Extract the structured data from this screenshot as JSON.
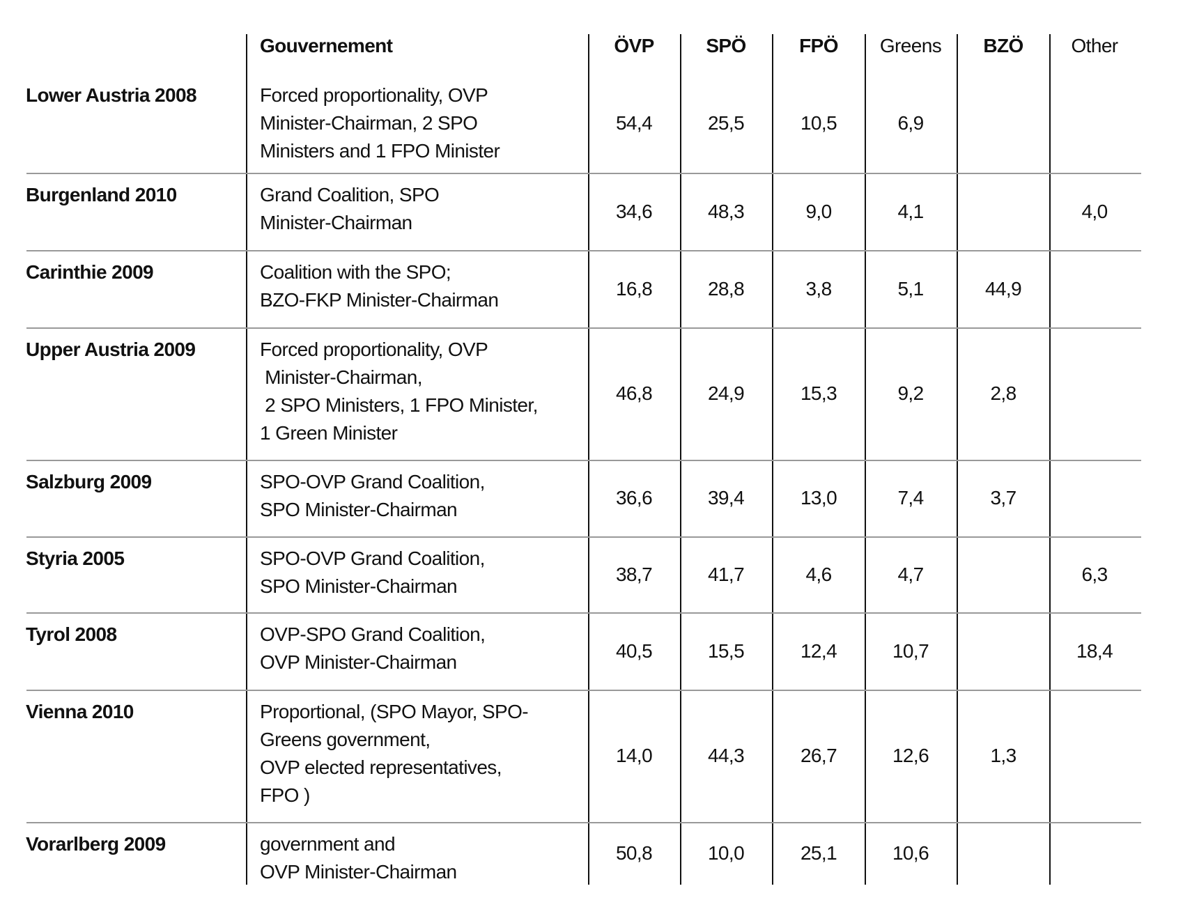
{
  "table": {
    "header": {
      "government": "Gouvernement",
      "parties": [
        "ÖVP",
        "SPÖ",
        "FPÖ",
        "Greens",
        "BZÖ",
        "Other"
      ]
    },
    "rows": [
      {
        "region": "Lower Austria 2008",
        "government": [
          "Forced proportionality, OVP",
          "Minister-Chairman, 2 SPO",
          "Ministers and 1 FPO Minister"
        ],
        "values": [
          "54,4",
          "25,5",
          "10,5",
          "6,9",
          null,
          null
        ]
      },
      {
        "region": "Burgenland 2010",
        "government": [
          "Grand Coalition, SPO",
          "Minister-Chairman"
        ],
        "values": [
          "34,6",
          "48,3",
          "9,0",
          "4,1",
          null,
          "4,0"
        ]
      },
      {
        "region": "Carinthie 2009",
        "government": [
          "Coalition with the SPO;",
          "BZO-FKP Minister-Chairman"
        ],
        "values": [
          "16,8",
          "28,8",
          "3,8",
          "5,1",
          "44,9",
          null
        ]
      },
      {
        "region": "Upper Austria 2009",
        "government": [
          "Forced proportionality, OVP",
          " Minister-Chairman,",
          " 2 SPO Ministers, 1 FPO Minister,",
          "1 Green Minister"
        ],
        "values": [
          "46,8",
          "24,9",
          "15,3",
          "9,2",
          "2,8",
          null
        ]
      },
      {
        "region": "Salzburg 2009",
        "government": [
          "SPO-OVP Grand Coalition,",
          "SPO Minister-Chairman"
        ],
        "values": [
          "36,6",
          "39,4",
          "13,0",
          "7,4",
          "3,7",
          null
        ]
      },
      {
        "region": "Styria 2005",
        "government": [
          "SPO-OVP Grand Coalition,",
          "SPO Minister-Chairman"
        ],
        "values": [
          "38,7",
          "41,7",
          "4,6",
          "4,7",
          null,
          "6,3"
        ]
      },
      {
        "region": "Tyrol 2008",
        "government": [
          "OVP-SPO Grand Coalition,",
          "OVP Minister-Chairman"
        ],
        "values": [
          "40,5",
          "15,5",
          "12,4",
          "10,7",
          null,
          "18,4"
        ]
      },
      {
        "region": "Vienna 2010",
        "government": [
          "Proportional, (SPO Mayor, SPO-",
          "Greens government,",
          "OVP elected representatives,",
          "FPO )"
        ],
        "values": [
          "14,0",
          "44,3",
          "26,7",
          "12,6",
          "1,3",
          null
        ]
      },
      {
        "region": "Vorarlberg 2009",
        "government": [
          "government and",
          "OVP Minister-Chairman"
        ],
        "values": [
          "50,8",
          "10,0",
          "25,1",
          "10,6",
          null,
          null
        ]
      }
    ]
  }
}
